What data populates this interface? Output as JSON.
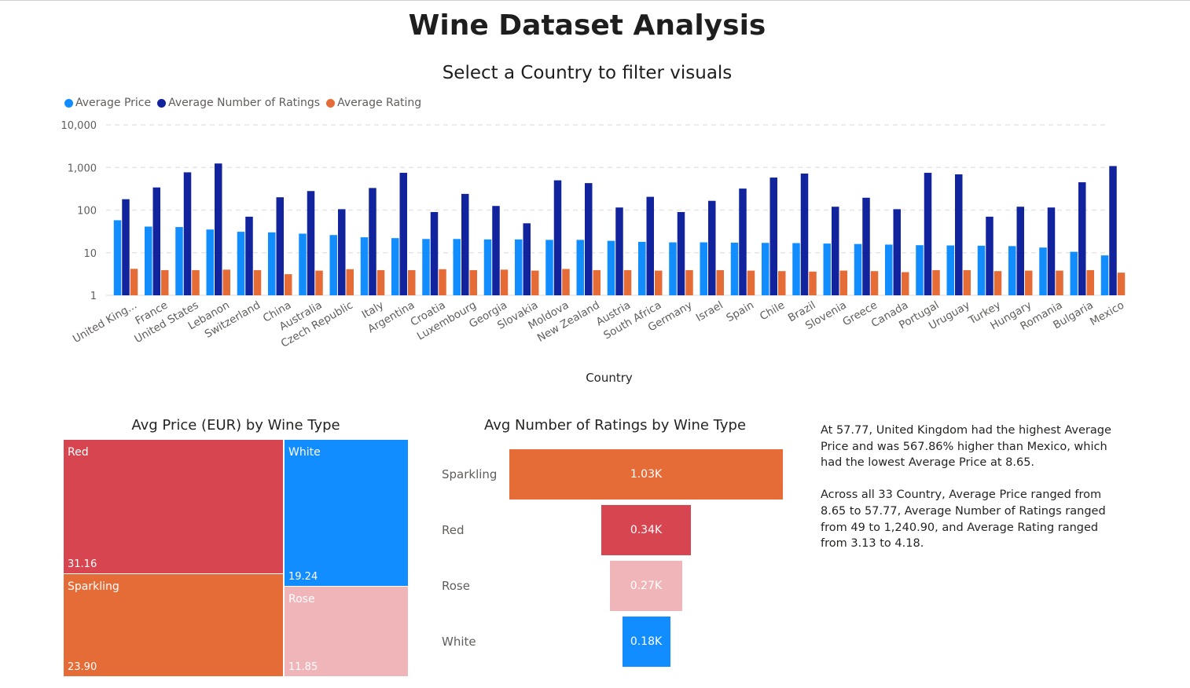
{
  "header": {
    "title": "Wine Dataset Analysis",
    "subtitle": "Select a Country to filter visuals"
  },
  "chart_data": [
    {
      "type": "bar",
      "title": "",
      "xlabel": "Country",
      "ylabel": "",
      "yscale": "log",
      "ylim": [
        1,
        10000
      ],
      "yticks": [
        "1",
        "10",
        "100",
        "1,000",
        "10,000"
      ],
      "grid": true,
      "legend_position": "top-left",
      "categories": [
        "United King...",
        "France",
        "United States",
        "Lebanon",
        "Switzerland",
        "China",
        "Australia",
        "Czech Republic",
        "Italy",
        "Argentina",
        "Croatia",
        "Luxembourg",
        "Georgia",
        "Slovakia",
        "Moldova",
        "New Zealand",
        "Austria",
        "South Africa",
        "Germany",
        "Israel",
        "Spain",
        "Chile",
        "Brazil",
        "Slovenia",
        "Greece",
        "Canada",
        "Portugal",
        "Uruguay",
        "Turkey",
        "Hungary",
        "Romania",
        "Bulgaria",
        "Mexico"
      ],
      "series": [
        {
          "name": "Average Price",
          "color": "#118DFF",
          "values": [
            57.77,
            41,
            40,
            35,
            31,
            30,
            28,
            26,
            23,
            22,
            21,
            21,
            20.5,
            20.5,
            20,
            20,
            19,
            18,
            17.5,
            17.5,
            17.2,
            17,
            16.8,
            16.4,
            16,
            15.5,
            15,
            14.8,
            14.6,
            14.3,
            13.2,
            10.5,
            8.65
          ]
        },
        {
          "name": "Average Number of Ratings",
          "color": "#12239E",
          "values": [
            180,
            340,
            770,
            1240.9,
            70,
            200,
            280,
            105,
            330,
            750,
            90,
            240,
            125,
            49,
            500,
            430,
            115,
            205,
            90,
            165,
            320,
            580,
            720,
            120,
            195,
            105,
            750,
            690,
            70,
            120,
            115,
            450,
            1080
          ]
        },
        {
          "name": "Average Rating",
          "color": "#E66C37",
          "values": [
            4.18,
            3.9,
            3.9,
            4.0,
            3.9,
            3.13,
            3.8,
            4.1,
            3.9,
            3.9,
            4.1,
            3.9,
            4.0,
            3.8,
            4.15,
            3.9,
            3.9,
            3.8,
            3.9,
            3.9,
            3.8,
            3.7,
            3.6,
            3.8,
            3.7,
            3.5,
            3.9,
            3.9,
            3.7,
            3.8,
            3.8,
            3.9,
            3.4
          ]
        }
      ]
    },
    {
      "type": "treemap",
      "title": "Avg Price (EUR) by Wine Type",
      "items": [
        {
          "label": "Red",
          "value": 31.16,
          "value_label": "31.16",
          "color": "#D64550"
        },
        {
          "label": "Sparkling",
          "value": 23.9,
          "value_label": "23.90",
          "color": "#E66C37"
        },
        {
          "label": "White",
          "value": 19.24,
          "value_label": "19.24",
          "color": "#118DFF"
        },
        {
          "label": "Rose",
          "value": 11.85,
          "value_label": "11.85",
          "color": "#EFB5B9"
        }
      ]
    },
    {
      "type": "bar",
      "subtype": "funnel",
      "title": "Avg Number of Ratings by Wine Type",
      "categories": [
        "Sparkling",
        "Red",
        "Rose",
        "White"
      ],
      "values": [
        1030,
        340,
        270,
        180
      ],
      "data_labels": [
        "1.03K",
        "0.34K",
        "0.27K",
        "0.18K"
      ],
      "colors": [
        "#E66C37",
        "#D64550",
        "#EFB5B9",
        "#118DFF"
      ]
    }
  ],
  "narrative": {
    "paragraph1": "At 57.77, United Kingdom had the highest Average Price and was 567.86% higher than Mexico, which had the lowest Average Price at 8.65.",
    "paragraph2": "Across all 33 Country, Average Price ranged from 8.65 to 57.77, Average Number of Ratings ranged from 49 to 1,240.90, and Average Rating ranged from 3.13 to 4.18."
  }
}
